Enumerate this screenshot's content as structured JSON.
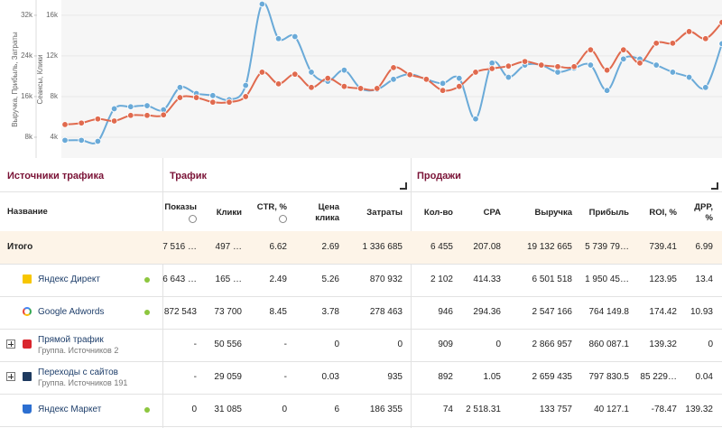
{
  "chart_data": {
    "type": "line",
    "ylabel": "Сеансы, Клики",
    "y2label": "Выручка, Прибыль, Затраты",
    "categories": [
      null,
      null,
      null,
      null,
      null,
      null,
      null,
      null,
      null,
      null,
      null,
      null,
      null,
      null,
      null,
      null,
      null,
      null,
      null,
      null,
      null,
      null,
      null,
      null,
      null,
      null,
      null,
      null,
      null,
      null,
      null,
      null,
      null,
      null,
      null,
      null,
      null,
      null,
      null,
      null,
      null
    ],
    "ylim": [
      2000,
      17500
    ],
    "yticks": [
      {
        "value": 4000,
        "label": "4k"
      },
      {
        "value": 8000,
        "label": "8k"
      },
      {
        "value": 12000,
        "label": "12k"
      },
      {
        "value": 16000,
        "label": "16k"
      }
    ],
    "y2lim": [
      4000,
      35000
    ],
    "y2ticks": [
      {
        "value": 8000,
        "label": "8k"
      },
      {
        "value": 16000,
        "label": "16k"
      },
      {
        "value": 24000,
        "label": "24k"
      },
      {
        "value": 32000,
        "label": "32k"
      }
    ],
    "grid": true,
    "series": [
      {
        "color": "#6aaad8",
        "values": [
          3700,
          3700,
          3600,
          6800,
          7000,
          7100,
          6700,
          8900,
          8300,
          8100,
          7700,
          9100,
          17100,
          13700,
          13900,
          10400,
          9500,
          10600,
          8800,
          8700,
          9700,
          10200,
          9700,
          9300,
          9800,
          5800,
          11300,
          9900,
          11100,
          11100,
          10400,
          10800,
          11100,
          8600,
          11700,
          11700,
          11100,
          10400,
          9900,
          8900,
          13200
        ]
      },
      {
        "color": "#e06a4e",
        "axis": "y2",
        "values": [
          10500,
          10800,
          11600,
          11200,
          12300,
          12300,
          12400,
          15800,
          15800,
          14900,
          14900,
          16000,
          20800,
          18500,
          20400,
          17800,
          19600,
          18000,
          17600,
          17600,
          21700,
          20300,
          19400,
          17200,
          18000,
          20800,
          21500,
          22000,
          22900,
          22200,
          21900,
          21900,
          25200,
          21200,
          25200,
          22600,
          26500,
          26500,
          28800,
          27400,
          30600
        ]
      }
    ]
  },
  "table": {
    "group_headers": [
      "Источники трафика",
      "Трафик",
      "Продажи"
    ],
    "columns": [
      "Название",
      "Показы",
      "Клики",
      "CTR, %",
      "Цена клика",
      "Затраты",
      "Кол-во",
      "CPA",
      "Выручка",
      "Прибыль",
      "ROI, %",
      "ДРР, %"
    ],
    "rows": [
      {
        "name": "Итого",
        "cells": [
          "7 516 …",
          "497 …",
          "6.62",
          "2.69",
          "1 336 685",
          "6 455",
          "207.08",
          "19 132 665",
          "5 739 79…",
          "739.41",
          "6.99"
        ]
      },
      {
        "name": "Яндекс Директ",
        "cells": [
          "6 643 …",
          "165 …",
          "2.49",
          "5.26",
          "870 932",
          "2 102",
          "414.33",
          "6 501 518",
          "1 950 45…",
          "123.95",
          "13.4"
        ]
      },
      {
        "name": "Google Adwords",
        "cells": [
          "872 543",
          "73 700",
          "8.45",
          "3.78",
          "278 463",
          "946",
          "294.36",
          "2 547 166",
          "764 149.8",
          "174.42",
          "10.93"
        ]
      },
      {
        "name": "Прямой трафик",
        "subtitle": "Группа. Источников 2",
        "cells": [
          "-",
          "50 556",
          "-",
          "0",
          "0",
          "909",
          "0",
          "2 866 957",
          "860 087.1",
          "139.32",
          "0"
        ]
      },
      {
        "name": "Переходы с сайтов",
        "subtitle": "Группа. Источников 191",
        "cells": [
          "-",
          "29 059",
          "-",
          "0.03",
          "935",
          "892",
          "1.05",
          "2 659 435",
          "797 830.5",
          "85 229…",
          "0.04"
        ]
      },
      {
        "name": "Яндекс Маркет",
        "cells": [
          "0",
          "31 085",
          "0",
          "6",
          "186 355",
          "74",
          "2 518.31",
          "133 757",
          "40 127.1",
          "-78.47",
          "139.32"
        ]
      }
    ]
  }
}
